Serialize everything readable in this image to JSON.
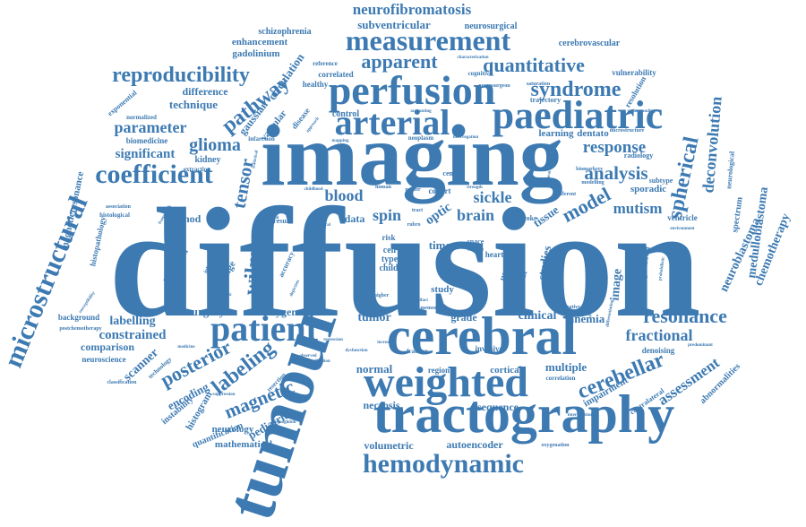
{
  "word_color": "#3d7ab2",
  "words": {
    "diffusion": "diffusion",
    "imaging": "imaging",
    "tumour": "tumour",
    "tractography": "tractography",
    "cerebral": "cerebral",
    "perfusion": "perfusion",
    "paediatric": "paediatric",
    "arterial": "arterial",
    "weighted": "weighted",
    "measurement": "measurement",
    "hemodynamic": "hemodynamic",
    "patient": "patient",
    "microstructural": "microstructural",
    "coefficient": "coefficient",
    "reproducibility": "reproducibility",
    "quantitative": "quantitative",
    "syndrome": "syndrome",
    "apparent": "apparent",
    "neurofibromatosis": "neurofibromatosis",
    "subventricular": "subventricular",
    "neurosurgical": "neurosurgical",
    "schizophrenia": "schizophrenia",
    "enhancement": "enhancement",
    "gadolinium": "gadolinium",
    "cerebrovascular": "cerebrovascular",
    "pathway": "pathway",
    "circulation": "circulation",
    "parameter": "parameter",
    "technique": "technique",
    "difference": "difference",
    "significant": "significant",
    "glioma": "glioma",
    "tensor": "tensor",
    "response": "response",
    "analysis": "analysis",
    "spherical": "spherical",
    "deconvolution": "deconvolution",
    "medulloblastoma": "medulloblastoma",
    "neuroblastoma": "neuroblastoma",
    "chemotherapy": "chemotherapy",
    "model": "model",
    "mutism": "mutism",
    "resonance": "resonance",
    "fractional": "fractional",
    "cerebellar": "cerebellar",
    "assessment": "assessment",
    "magnetic": "magnetic",
    "labeling": "labeling",
    "posterior": "posterior",
    "value": "value",
    "wilms": "wilms",
    "blood": "blood",
    "spin": "spin",
    "brain": "brain",
    "sickle": "sickle",
    "tumor": "tumor",
    "labelling": "labelling",
    "constrained": "constrained",
    "surgery": "surgery",
    "oxygen": "oxygen",
    "clinical": "clinical",
    "anemia": "anemia",
    "sequence": "sequence",
    "multiple": "multiple",
    "normal": "normal",
    "necrosis": "necrosis",
    "volumetric": "volumetric",
    "autoencoder": "autoencoder",
    "mathematical": "mathematical",
    "neurology": "neurology",
    "quantification": "quantification",
    "pediatric": "pediatric",
    "histogram": "histogram",
    "encoding": "encoding",
    "instability": "instability",
    "comparison": "comparison",
    "scanner": "scanner",
    "neuroscience": "neuroscience",
    "background": "background",
    "method": "method",
    "relaxation": "relaxation",
    "magneticresonance": "magneticresonance",
    "histopathology": "histopathology",
    "biomedicine": "biomedicine",
    "kidney": "kidney",
    "gaussian": "gaussian",
    "vascular": "vascular",
    "exponential": "exponential",
    "space": "space",
    "time": "time",
    "optic": "optic",
    "tissue": "tissue",
    "image": "image",
    "subtype": "subtype",
    "sporadic": "sporadic",
    "ventricle": "ventricle",
    "study": "study",
    "cortical": "cortical",
    "grade": "grade",
    "region": "region",
    "correlation": "correlation",
    "impairment": "impairment",
    "denoising": "denoising",
    "abnormalities": "abnormalities",
    "contrast": "contrast",
    "uptake": "uptake",
    "heart": "heart",
    "cohort": "cohort",
    "learning": "learning",
    "dentato": "dentato",
    "control": "control",
    "healthy": "healthy",
    "trajectory": "trajectory",
    "reference": "reference",
    "correlated": "correlated",
    "cognitive": "cognitive",
    "vulnerability": "vulnerability",
    "resolution": "resolution",
    "radiology": "radiology",
    "different": "different",
    "invasive": "invasive",
    "data": "data",
    "change": "change",
    "result": "result",
    "type": "type",
    "cell": "cell",
    "child": "child",
    "risk": "risk",
    "studies": "studies",
    "langendorff": "langendorff",
    "oxygenation": "oxygenation",
    "disease": "disease",
    "infarction": "infarction",
    "extraction": "extraction",
    "normalized": "normalized",
    "stroke": "stroke",
    "centre": "centre",
    "matter": "matter",
    "fraction": "fraction",
    "higher": "higher",
    "metric": "metric",
    "memory": "memory",
    "observed": "observed",
    "postchemotherapy": "postchemotherapy",
    "classification": "classification",
    "technology": "technology",
    "medicine": "medicine",
    "suppression": "suppression",
    "resection": "resection",
    "hemoglobin": "hemoglobin",
    "weighting": "weighting",
    "predominant": "predominant",
    "integrative": "integrative",
    "transient": "transient",
    "contralateral": "contralateral",
    "neurosurgeon": "neurosurgeon",
    "saturation": "saturation",
    "characterization": "characterization",
    "modelling": "modelling",
    "biomarkers": "biomarkers",
    "microstructure": "microstructure",
    "neurological": "neurological",
    "spectrum": "spectrum",
    "association": "association",
    "histological": "histological",
    "susceptibility": "susceptibility",
    "framework": "framework",
    "statistical": "statistical",
    "accuracy": "accuracy",
    "information": "information",
    "visible": "visible",
    "approach": "approach",
    "fossa": "fossa",
    "strength": "strength",
    "volume": "volume",
    "rubro": "rubro",
    "human": "human",
    "tract": "tract",
    "childhood": "childhood",
    "bilateral": "bilateral",
    "mapping": "mapping",
    "accounting": "accounting",
    "neoplasm": "neoplasm",
    "proportion": "proportion",
    "interrogation": "interrogation",
    "probabilistic": "probabilistic",
    "environment": "environment",
    "depiction": "depiction",
    "precision": "precision",
    "evaluation": "evaluation",
    "structure": "structure",
    "alternative": "alternative",
    "potential": "potential",
    "diagnostic": "diagnostic",
    "differentiating": "differentiating",
    "regression": "regression",
    "increase": "increase",
    "validation": "validation",
    "dysfunction": "dysfunction",
    "artifact": "artifact",
    "transcranial": "transcranial",
    "functional": "functional",
    "longitudinal": "longitudinal",
    "understanding": "understanding",
    "sensitivity": "sensitivity",
    "characteristic": "characteristic",
    "specificity": "specificity",
    "estimation": "estimation",
    "outcome": "outcome",
    "application": "application",
    "pattern": "pattern",
    "underlying": "underlying",
    "intravoxel": "intravoxel",
    "signal": "signal",
    "ischemic": "ischemic",
    "lesion": "lesion",
    "progression": "progression",
    "performance": "performance",
    "connectivity": "connectivity"
  }
}
